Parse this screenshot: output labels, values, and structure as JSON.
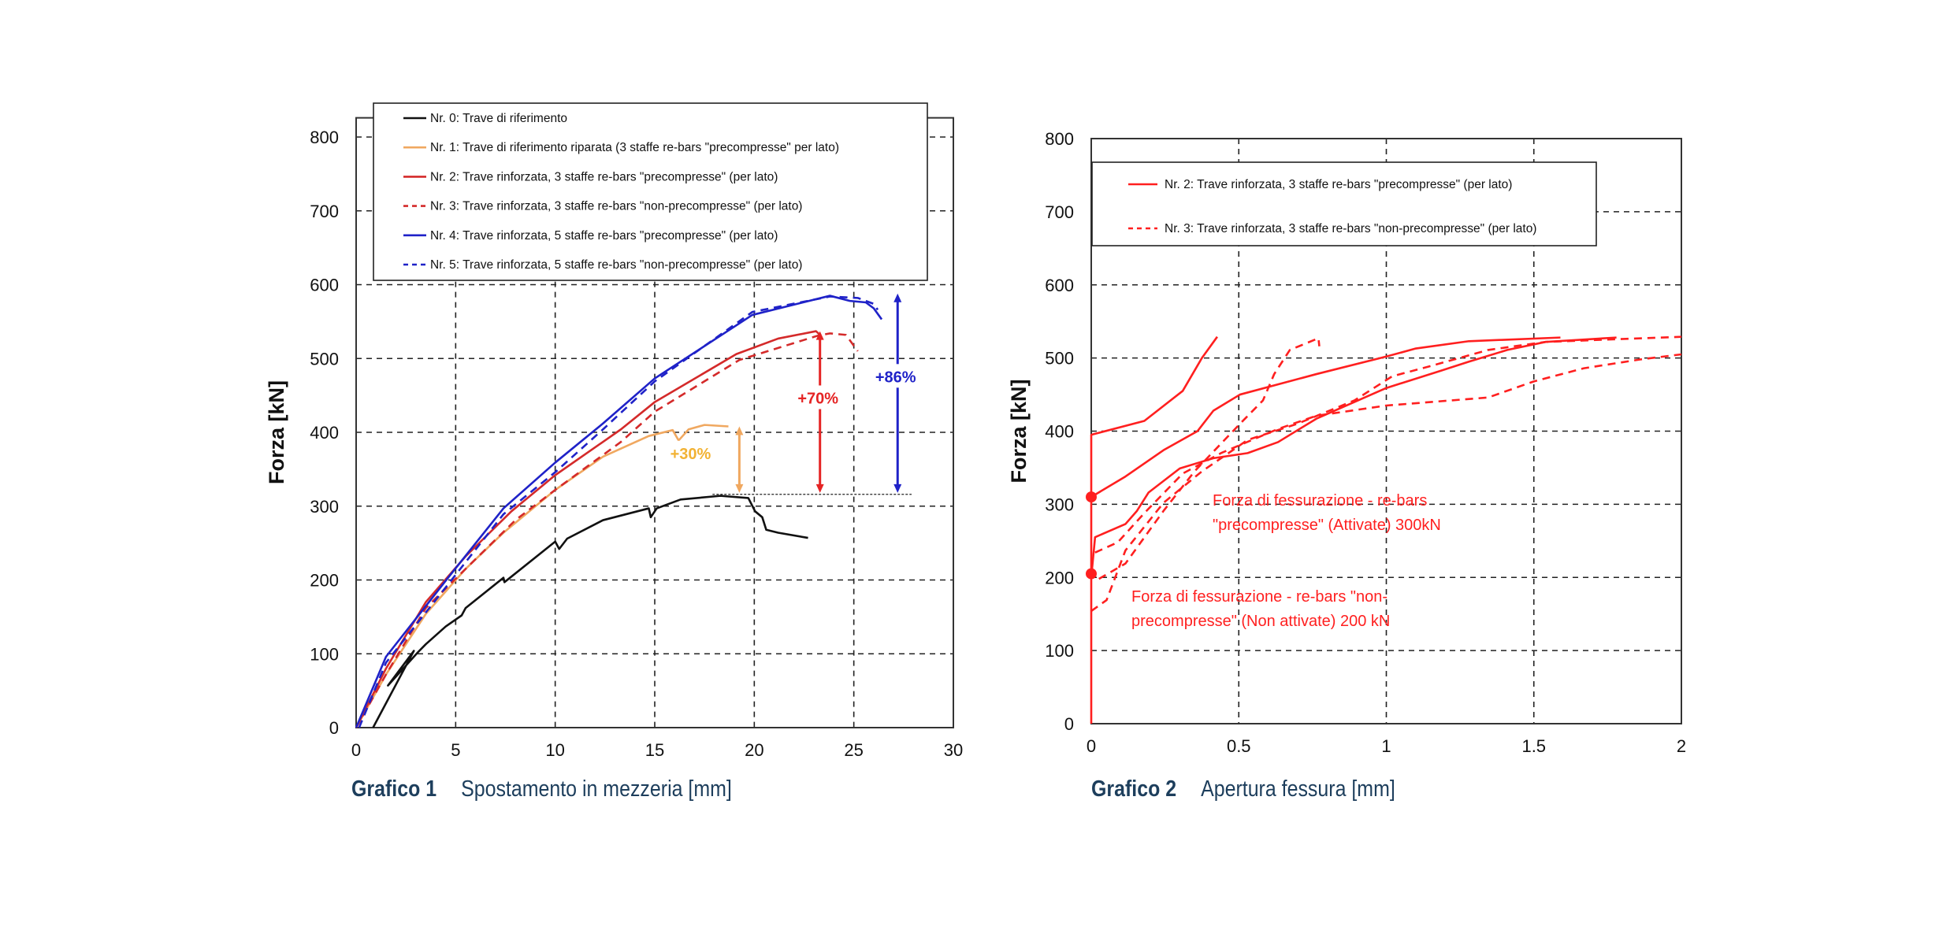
{
  "chart_data": [
    {
      "type": "line",
      "caption_label": "Grafico 1",
      "xlabel": "Spostamento in mezzeria [mm]",
      "ylabel": "Forza [kN]",
      "xlim": [
        0,
        30
      ],
      "ylim": [
        0,
        800
      ],
      "xticks": [
        "0",
        "5",
        "10",
        "15",
        "20",
        "25",
        "30"
      ],
      "yticks": [
        "0",
        "100",
        "200",
        "300",
        "400",
        "500",
        "600",
        "700",
        "800"
      ],
      "grid": true,
      "legend": "top",
      "series": [
        {
          "name": "Nr. 0: Trave di riferimento",
          "color": "#111111",
          "dash": false,
          "curves": [
            [
              [
                0.85,
                0
              ],
              [
                2.9,
                104
              ],
              [
                1.6,
                57
              ],
              [
                3.1,
                102
              ],
              [
                3.5,
                113
              ],
              [
                4.5,
                137
              ],
              [
                5.3,
                152
              ],
              [
                5.5,
                162
              ],
              [
                7.4,
                203
              ],
              [
                7.45,
                197
              ],
              [
                10,
                252
              ],
              [
                10.2,
                242
              ],
              [
                10.6,
                256
              ],
              [
                12.4,
                281
              ],
              [
                14.7,
                297
              ],
              [
                14.8,
                285
              ],
              [
                15.1,
                297
              ],
              [
                16.3,
                309
              ],
              [
                18.3,
                314
              ],
              [
                19.7,
                311
              ],
              [
                20.04,
                293
              ],
              [
                20.4,
                285
              ],
              [
                20.6,
                268
              ],
              [
                21.2,
                264
              ],
              [
                22.7,
                257
              ]
            ]
          ]
        },
        {
          "name": "Nr. 1: Trave di riferimento riparata (3 staffe re-bars \"precompresse\" per lato)",
          "color": "#f0a860",
          "dash": false,
          "curves": [
            [
              [
                0,
                0
              ],
              [
                1.5,
                72
              ],
              [
                3.5,
                154
              ],
              [
                5.5,
                215
              ],
              [
                7.4,
                264
              ],
              [
                10,
                322
              ],
              [
                12.4,
                367
              ],
              [
                14.7,
                395
              ],
              [
                15.9,
                403
              ],
              [
                16.2,
                389
              ],
              [
                16.7,
                404
              ],
              [
                17.5,
                410
              ],
              [
                18.7,
                408
              ]
            ]
          ]
        },
        {
          "name": "Nr. 2: Trave rinforzata, 3 staffe re-bars \"precompresse\" (per lato)",
          "color": "#d42a2a",
          "dash": false,
          "curves": [
            [
              [
                0,
                0
              ],
              [
                1.5,
                80
              ],
              [
                3.5,
                170
              ],
              [
                5.5,
                232
              ],
              [
                7.8,
                293
              ],
              [
                10,
                342
              ],
              [
                13.3,
                404
              ],
              [
                15,
                441
              ],
              [
                19.1,
                506
              ],
              [
                21.2,
                527
              ],
              [
                23.1,
                537
              ],
              [
                23.3,
                532
              ]
            ]
          ]
        },
        {
          "name": "Nr. 3: Trave rinforzata, 3 staffe re-bars \"non-precompresse\" (per lato)",
          "color": "#d42a2a",
          "dash": true,
          "curves": [
            [
              [
                0,
                0
              ],
              [
                1.5,
                72
              ],
              [
                3.5,
                162
              ],
              [
                5.5,
                215
              ],
              [
                8,
                281
              ],
              [
                10,
                322
              ],
              [
                13.3,
                387
              ],
              [
                15,
                428
              ],
              [
                19.25,
                498
              ],
              [
                23.2,
                531
              ],
              [
                23.8,
                534
              ],
              [
                24.6,
                532
              ],
              [
                25.2,
                510
              ]
            ]
          ]
        },
        {
          "name": "Nr. 4: Trave rinforzata, 5 staffe re-bars \"precompresse\"  (per lato)",
          "color": "#1f22c8",
          "dash": false,
          "curves": [
            [
              [
                0,
                0
              ],
              [
                1.5,
                96
              ],
              [
                4.5,
                199
              ],
              [
                7.4,
                297
              ],
              [
                10,
                359
              ],
              [
                12.4,
                412
              ],
              [
                15,
                473
              ],
              [
                19.9,
                559
              ],
              [
                23.8,
                585
              ],
              [
                24.8,
                578
              ],
              [
                25.6,
                576
              ],
              [
                26,
                568
              ],
              [
                26.4,
                553
              ]
            ]
          ]
        },
        {
          "name": "Nr. 5: Trave rinforzata, 5 staffe re-bars \"non-precompresse\" (per lato)",
          "color": "#1f22c8",
          "dash": true,
          "curves": [
            [
              [
                0.15,
                0
              ],
              [
                1.5,
                88
              ],
              [
                4.5,
                190
              ],
              [
                7.4,
                289
              ],
              [
                10,
                346
              ],
              [
                12.4,
                404
              ],
              [
                15,
                469
              ],
              [
                19.9,
                563
              ],
              [
                23.8,
                584
              ],
              [
                25.2,
                582
              ],
              [
                26,
                574
              ],
              [
                26.2,
                566
              ]
            ]
          ]
        }
      ],
      "reference_line": {
        "y": 316,
        "x": [
          17.9,
          27.9
        ]
      },
      "annotations": [
        {
          "text": "+30%",
          "color": "#f2b233",
          "x": 16.8,
          "y": 365,
          "arrow": {
            "x": 19.25,
            "from": 408,
            "to": 318,
            "color": "#f0a860"
          }
        },
        {
          "text": "+70%",
          "color": "#e52424",
          "x": 23.2,
          "y": 440,
          "arrow": {
            "x": 23.3,
            "from": 537,
            "to": 318,
            "color": "#e52424"
          }
        },
        {
          "text": "+86%",
          "color": "#1f22c8",
          "x": 27.1,
          "y": 469,
          "arrow": {
            "x": 27.2,
            "from": 588,
            "to": 318,
            "color": "#1f22c8"
          }
        }
      ]
    },
    {
      "type": "line",
      "caption_label": "Grafico 2",
      "xlabel": "Apertura fessura [mm]",
      "ylabel": "Forza [kN]",
      "xlim": [
        0,
        2
      ],
      "ylim": [
        0,
        800
      ],
      "xticks": [
        "0",
        "0.5",
        "1",
        "1.5",
        "2"
      ],
      "yticks": [
        "0",
        "100",
        "200",
        "300",
        "400",
        "500",
        "600",
        "700",
        "800"
      ],
      "grid": true,
      "legend": "top-left",
      "series": [
        {
          "name": "Nr. 2: Trave rinforzata, 3 staffe re-bars \"precompresse\" (per lato)",
          "color": "#ff1f1f",
          "dash": false,
          "curves": [
            [
              [
                0,
                0
              ],
              [
                0,
                395
              ],
              [
                0.18,
                414
              ],
              [
                0.31,
                455
              ],
              [
                0.375,
                500
              ],
              [
                0.427,
                529
              ]
            ],
            [
              [
                0,
                310
              ],
              [
                0.116,
                338
              ],
              [
                0.245,
                374
              ],
              [
                0.36,
                400
              ],
              [
                0.414,
                428
              ],
              [
                0.504,
                450
              ],
              [
                0.763,
                478
              ],
              [
                1,
                502
              ],
              [
                1.1,
                513
              ],
              [
                1.28,
                523
              ],
              [
                1.59,
                528
              ]
            ],
            [
              [
                0,
                200
              ],
              [
                0.013,
                255
              ],
              [
                0.116,
                273
              ],
              [
                0.155,
                291
              ],
              [
                0.194,
                316
              ],
              [
                0.3,
                349
              ],
              [
                0.414,
                363
              ],
              [
                0.53,
                370
              ],
              [
                0.633,
                385
              ],
              [
                0.763,
                417
              ],
              [
                1,
                459
              ],
              [
                1.18,
                482
              ],
              [
                1.28,
                495
              ],
              [
                1.41,
                511
              ],
              [
                1.54,
                522
              ],
              [
                1.78,
                528
              ]
            ]
          ]
        },
        {
          "name": "Nr. 3: Trave rinforzata, 3 staffe re-bars \"non-precompresse\" (per lato)",
          "color": "#ff1f1f",
          "dash": true,
          "curves": [
            [
              [
                0.026,
                198
              ],
              [
                0.116,
                219
              ],
              [
                0.245,
                291
              ],
              [
                0.35,
                345
              ],
              [
                0.504,
                410
              ],
              [
                0.582,
                442
              ],
              [
                0.62,
                478
              ],
              [
                0.673,
                511
              ],
              [
                0.77,
                527
              ],
              [
                0.773,
                516
              ]
            ],
            [
              [
                0,
                154
              ],
              [
                0.052,
                169
              ],
              [
                0.116,
                237
              ],
              [
                0.245,
                302
              ],
              [
                0.375,
                345
              ],
              [
                0.53,
                388
              ],
              [
                0.698,
                410
              ],
              [
                0.892,
                442
              ],
              [
                1.02,
                475
              ],
              [
                1.15,
                489
              ],
              [
                1.345,
                511
              ],
              [
                1.54,
                522
              ],
              [
                2,
                529
              ]
            ],
            [
              [
                0.013,
                234
              ],
              [
                0.09,
                248
              ],
              [
                0.18,
                288
              ],
              [
                0.31,
                342
              ],
              [
                0.44,
                370
              ],
              [
                0.633,
                403
              ],
              [
                0.763,
                421
              ],
              [
                1,
                435
              ],
              [
                1.345,
                446
              ],
              [
                1.5,
                468
              ],
              [
                1.67,
                486
              ],
              [
                1.86,
                498
              ],
              [
                2,
                505
              ]
            ]
          ]
        }
      ],
      "markers": [
        {
          "x": 0,
          "y": 310,
          "color": "#ff1f1f"
        },
        {
          "x": 0,
          "y": 205,
          "color": "#ff1f1f"
        }
      ],
      "notes": [
        {
          "lines": [
            "Forza di fessurazione - re-bars",
            "\"precompresse\" (Attivate) 300kN"
          ],
          "color": "#ff1f1f"
        },
        {
          "lines": [
            "Forza di fessurazione - re-bars \"non-",
            "precompresse\" (Non attivate) 200 kN"
          ],
          "color": "#ff1f1f"
        }
      ]
    }
  ]
}
